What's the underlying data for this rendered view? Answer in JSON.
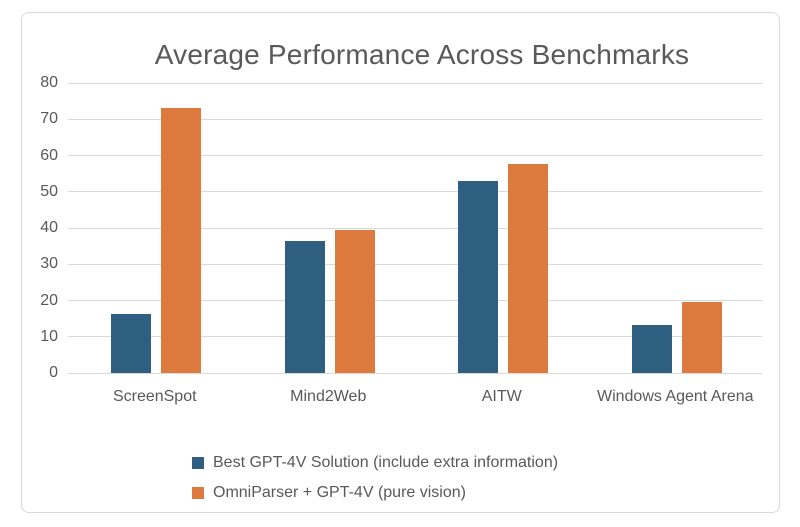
{
  "chart_data": {
    "type": "bar",
    "title": "Average Performance Across Benchmarks",
    "categories": [
      "ScreenSpot",
      "Mind2Web",
      "AITW",
      "Windows Agent Arena"
    ],
    "series": [
      {
        "name": "Best GPT-4V Solution (include extra information)",
        "color": "#2e5f81",
        "values": [
          16.2,
          36.4,
          53.0,
          13.3
        ]
      },
      {
        "name": "OmniParser + GPT-4V (pure vision)",
        "color": "#dc7b3d",
        "values": [
          73.0,
          39.4,
          57.7,
          19.5
        ]
      }
    ],
    "xlabel": "",
    "ylabel": "",
    "ylim": [
      0,
      80
    ],
    "ytick_step": 10,
    "grid": true,
    "legend_position": "bottom",
    "colors": {
      "grid": "#d9d9d9",
      "frame_border": "#d9d9d9",
      "text": "#595959",
      "background": "#ffffff"
    }
  }
}
